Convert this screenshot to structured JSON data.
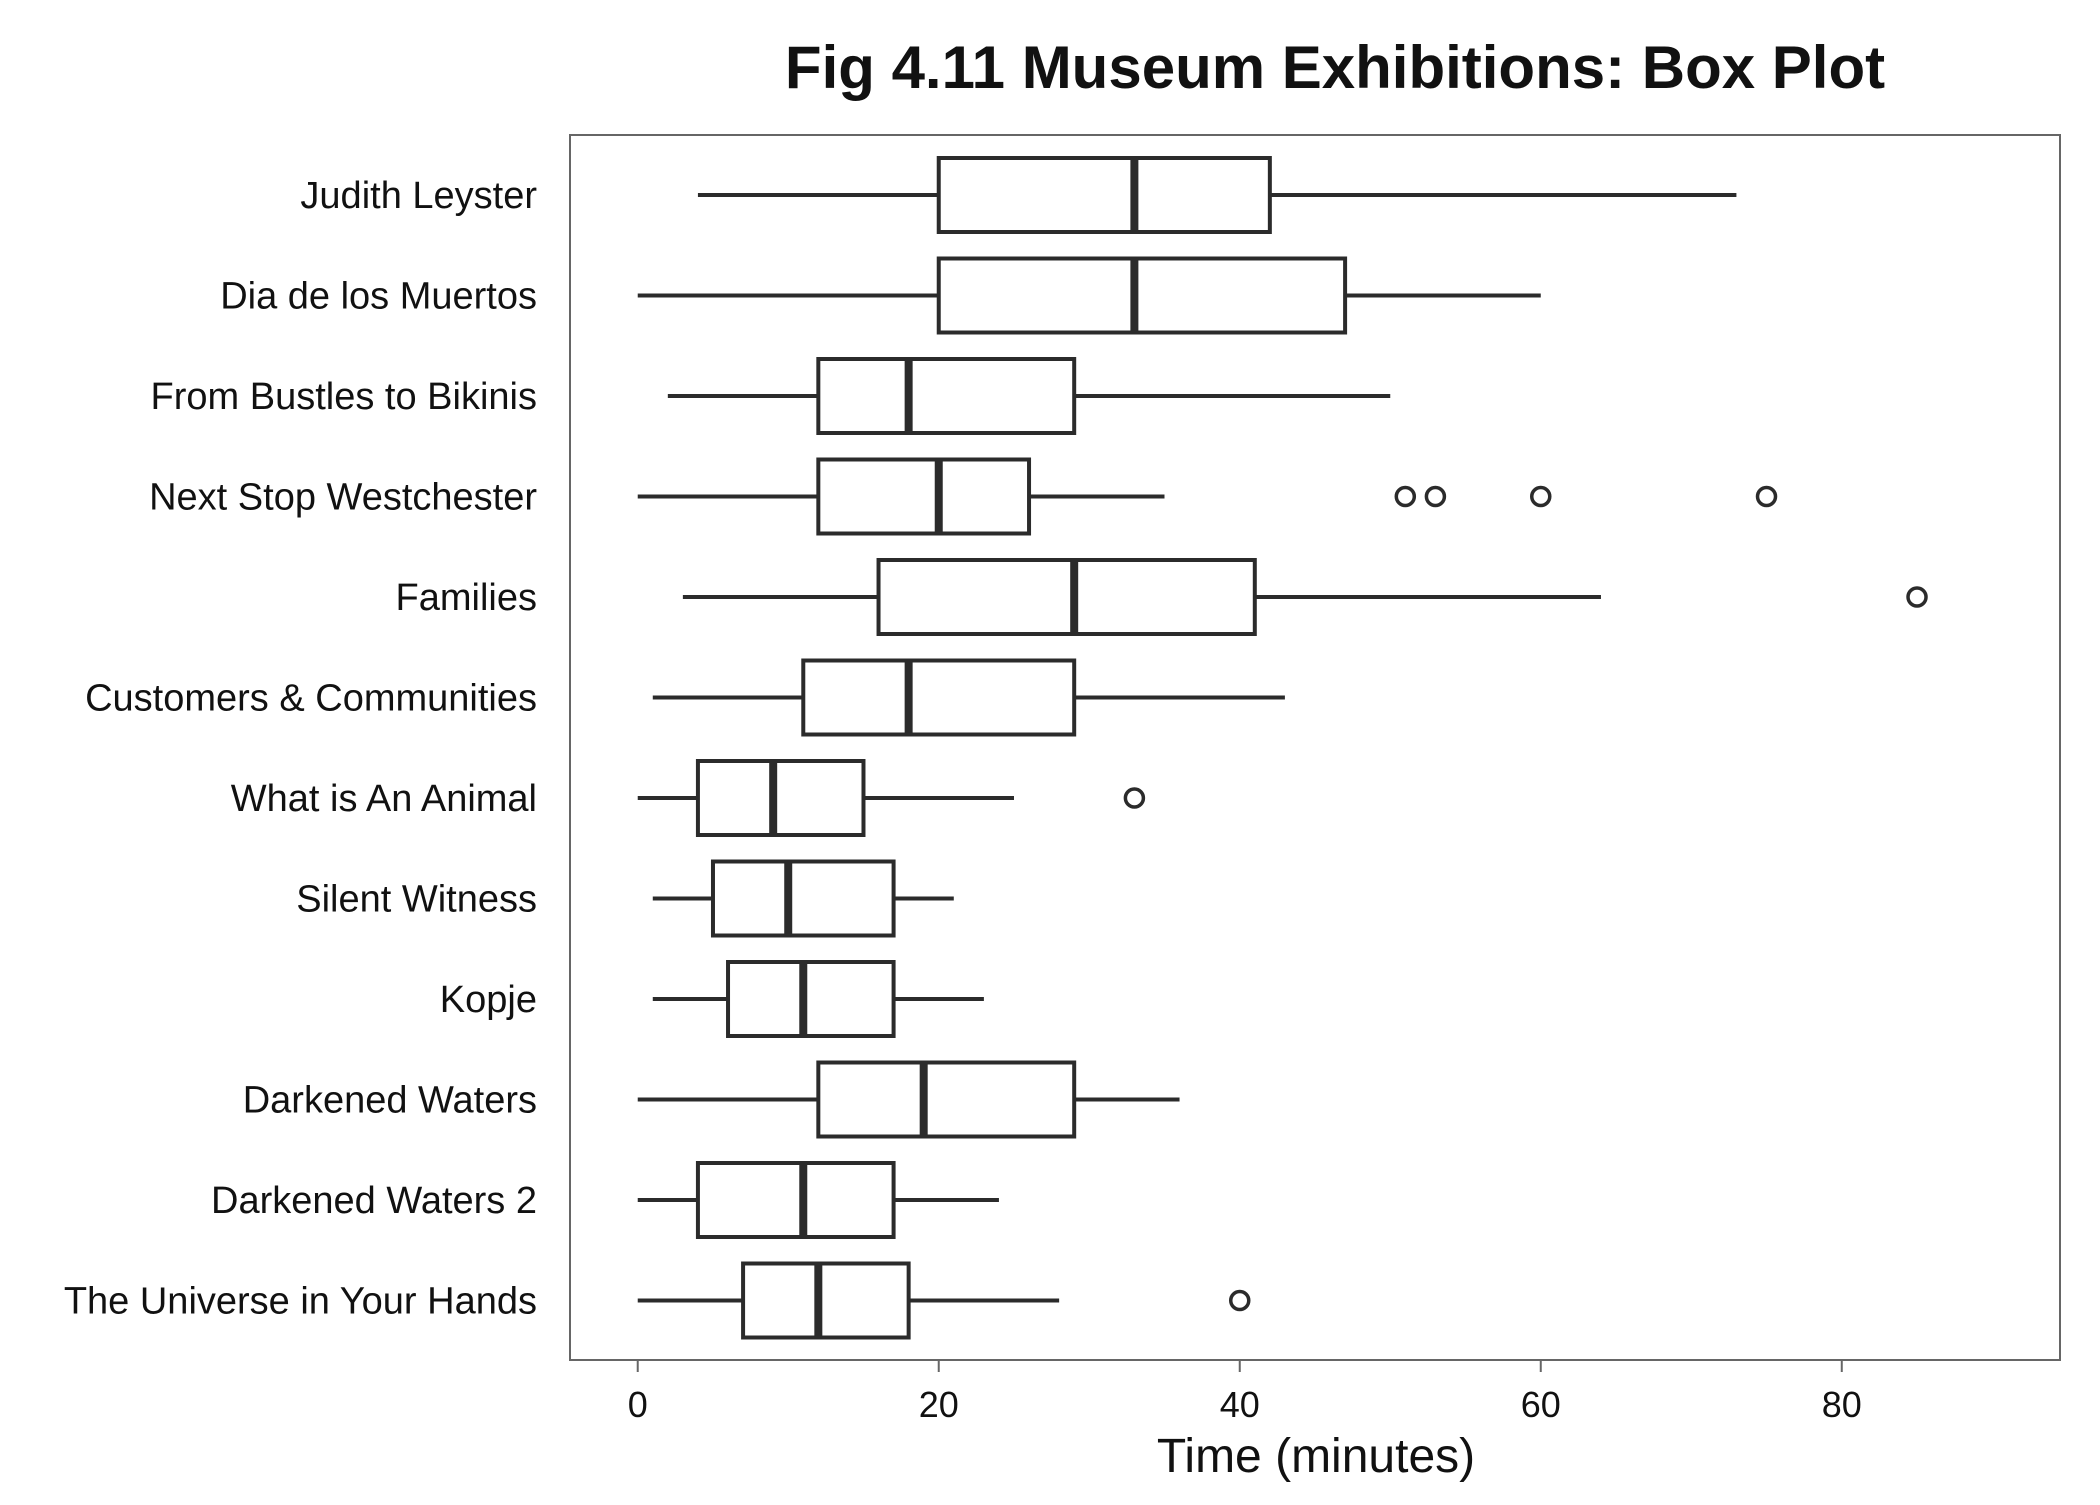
{
  "chart_data": {
    "type": "boxplot",
    "title": "Fig 4.11 Museum Exhibitions: Box Plot",
    "xlabel": "Time (minutes)",
    "ylabel": "",
    "xlim": [
      -4.5,
      94.5
    ],
    "xticks": [
      0,
      20,
      40,
      60,
      80
    ],
    "grid": false,
    "orientation": "horizontal",
    "categories": [
      {
        "label": "Judith Leyster",
        "whisker_low": 4,
        "q1": 20,
        "median": 33,
        "q3": 42,
        "whisker_high": 73,
        "outliers": []
      },
      {
        "label": "Dia de los Muertos",
        "whisker_low": 0,
        "q1": 20,
        "median": 33,
        "q3": 47,
        "whisker_high": 60,
        "outliers": []
      },
      {
        "label": "From Bustles to Bikinis",
        "whisker_low": 2,
        "q1": 12,
        "median": 18,
        "q3": 29,
        "whisker_high": 50,
        "outliers": []
      },
      {
        "label": "Next Stop Westchester",
        "whisker_low": 0,
        "q1": 12,
        "median": 20,
        "q3": 26,
        "whisker_high": 35,
        "outliers": [
          51,
          53,
          60,
          75
        ]
      },
      {
        "label": "Families",
        "whisker_low": 3,
        "q1": 16,
        "median": 29,
        "q3": 41,
        "whisker_high": 64,
        "outliers": [
          85
        ]
      },
      {
        "label": "Customers & Communities",
        "whisker_low": 1,
        "q1": 11,
        "median": 18,
        "q3": 29,
        "whisker_high": 43,
        "outliers": []
      },
      {
        "label": "What is An Animal",
        "whisker_low": 0,
        "q1": 4,
        "median": 9,
        "q3": 15,
        "whisker_high": 25,
        "outliers": [
          33
        ]
      },
      {
        "label": "Silent Witness",
        "whisker_low": 1,
        "q1": 5,
        "median": 10,
        "q3": 17,
        "whisker_high": 21,
        "outliers": []
      },
      {
        "label": "Kopje",
        "whisker_low": 1,
        "q1": 6,
        "median": 11,
        "q3": 17,
        "whisker_high": 23,
        "outliers": []
      },
      {
        "label": "Darkened Waters",
        "whisker_low": 0,
        "q1": 12,
        "median": 19,
        "q3": 29,
        "whisker_high": 36,
        "outliers": []
      },
      {
        "label": "Darkened Waters 2",
        "whisker_low": 0,
        "q1": 4,
        "median": 11,
        "q3": 17,
        "whisker_high": 24,
        "outliers": []
      },
      {
        "label": "The Universe in Your Hands",
        "whisker_low": 0,
        "q1": 7,
        "median": 12,
        "q3": 18,
        "whisker_high": 28,
        "outliers": [
          40
        ]
      }
    ]
  },
  "colors": {
    "stroke": "#2b2b2b",
    "frame": "#666666",
    "box_fill": "#ffffff",
    "background": "#ffffff"
  }
}
